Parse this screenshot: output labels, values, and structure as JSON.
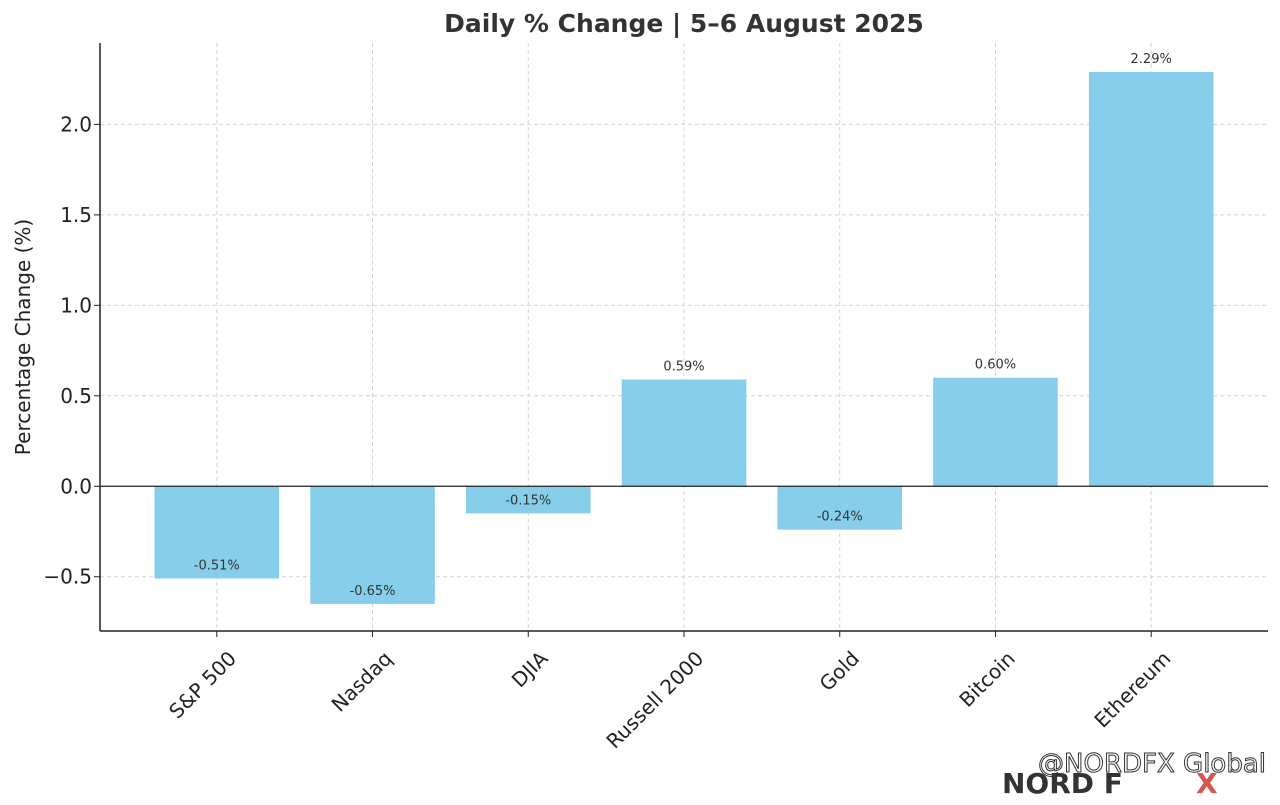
{
  "chart_data": {
    "type": "bar",
    "title": "Daily % Change | 5–6 August 2025",
    "xlabel": "",
    "ylabel": "Percentage Change (%)",
    "categories": [
      "S&P 500",
      "Nasdaq",
      "DJIA",
      "Russell 2000",
      "Gold",
      "Bitcoin",
      "Ethereum"
    ],
    "values": [
      -0.51,
      -0.65,
      -0.15,
      0.59,
      -0.24,
      0.6,
      2.29
    ],
    "data_labels": [
      "-0.51%",
      "-0.65%",
      "-0.15%",
      "0.59%",
      "-0.24%",
      "0.60%",
      "2.29%"
    ],
    "yticks": [
      -0.5,
      0.0,
      0.5,
      1.0,
      1.5,
      2.0
    ],
    "ytick_labels": [
      "−0.5",
      "0.0",
      "0.5",
      "1.0",
      "1.5",
      "2.0"
    ],
    "ylim": [
      -0.8,
      2.45
    ],
    "grid": true,
    "legend": "none",
    "bar_color": "#87ceeb"
  },
  "watermark": {
    "handle": "@NORDFX Global",
    "logo_main": "NORD F",
    "logo_x": "X"
  }
}
